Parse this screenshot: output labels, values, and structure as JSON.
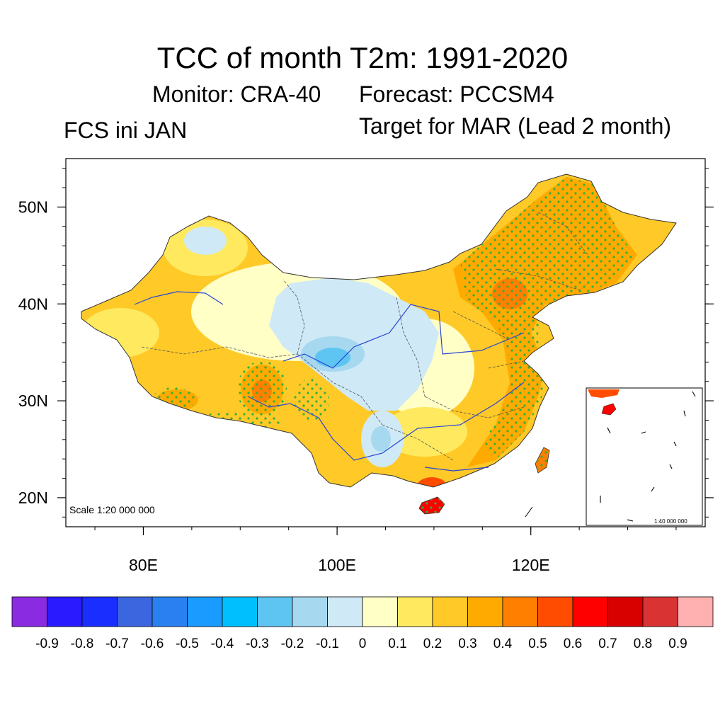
{
  "title": "TCC of month T2m: 1991-2020",
  "monitor": "Monitor: CRA-40",
  "forecast": "Forecast: PCCSM4",
  "fcs": "FCS ini JAN",
  "target": "Target for MAR (Lead 2 month)",
  "map": {
    "lon_range": [
      72,
      138
    ],
    "lat_range": [
      17,
      55
    ],
    "lon_ticks": [
      {
        "value": 80,
        "label": "80E"
      },
      {
        "value": 100,
        "label": "100E"
      },
      {
        "value": 120,
        "label": "120E"
      }
    ],
    "lat_ticks": [
      {
        "value": 50,
        "label": "50N"
      },
      {
        "value": 40,
        "label": "40N"
      },
      {
        "value": 30,
        "label": "30N"
      },
      {
        "value": 20,
        "label": "20N"
      }
    ],
    "scale_label": "Scale 1:20 000 000",
    "inset_scale_label": "1:40 000 000"
  },
  "colorbar": {
    "colors": [
      "#8a2be2",
      "#2a1aff",
      "#1a2fff",
      "#3c66e0",
      "#2a80f0",
      "#1a9bff",
      "#00bfff",
      "#5ec5f2",
      "#a6d8f0",
      "#cfe9f7",
      "#ffffc6",
      "#ffe95e",
      "#ffc927",
      "#ffaa00",
      "#ff8000",
      "#ff4c00",
      "#ff0000",
      "#d90000",
      "#d93333",
      "#ffb0b0"
    ],
    "labels": [
      "-0.9",
      "-0.8",
      "-0.7",
      "-0.6",
      "-0.5",
      "-0.4",
      "-0.3",
      "-0.2",
      "-0.1",
      "0",
      "0.1",
      "0.2",
      "0.3",
      "0.4",
      "0.5",
      "0.6",
      "0.7",
      "0.8",
      "0.9"
    ]
  }
}
